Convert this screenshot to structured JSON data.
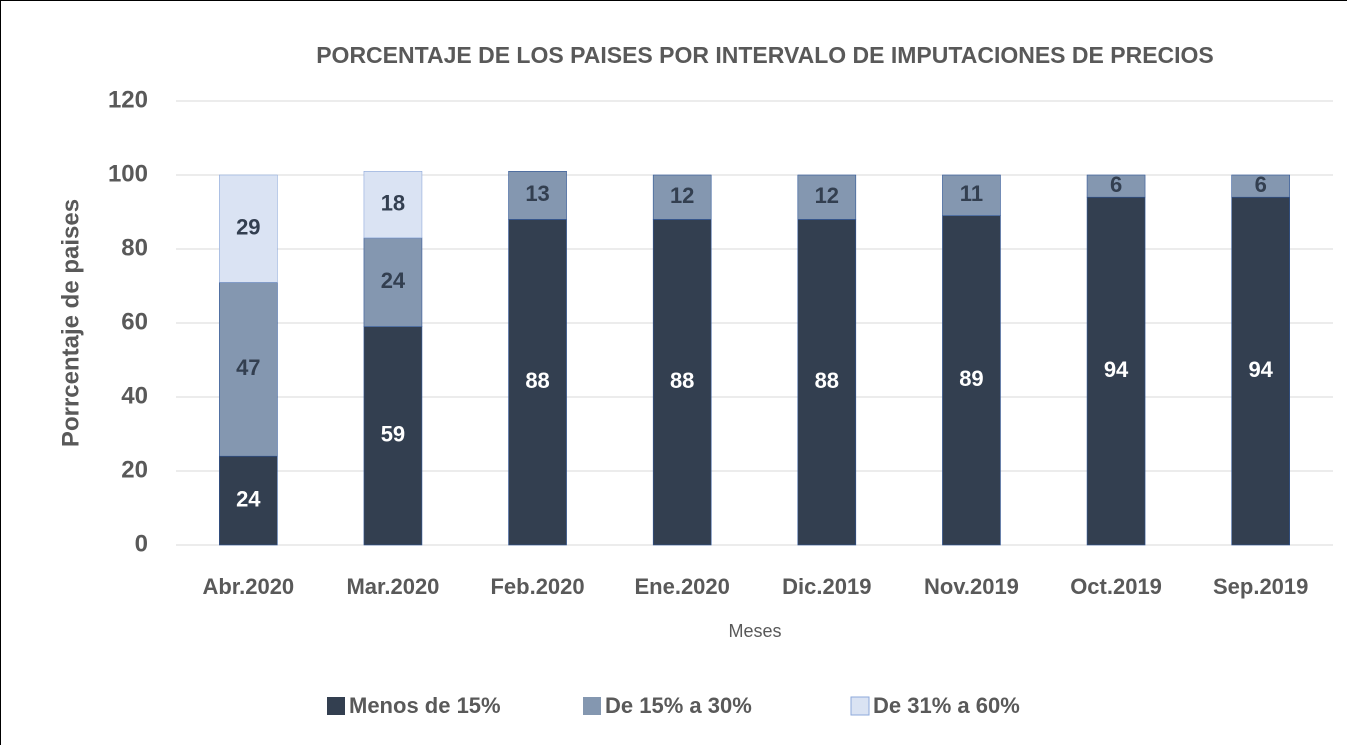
{
  "chart_data": {
    "type": "stacked_bar",
    "title": "PORCENTAJE DE LOS PAISES POR INTERVALO DE IMPUTACIONES DE PRECIOS",
    "x_label": "Meses",
    "y_label": "Porrcentaje de paises",
    "categories": [
      "Abr.2020",
      "Mar.2020",
      "Feb.2020",
      "Ene.2020",
      "Dic.2019",
      "Nov.2019",
      "Oct.2019",
      "Sep.2019"
    ],
    "series": [
      {
        "name": "Menos de 15%",
        "color": "#333f50",
        "values": [
          24,
          59,
          88,
          88,
          88,
          89,
          94,
          94
        ]
      },
      {
        "name": "De 15%  a 30%",
        "color": "#8497b0",
        "values": [
          47,
          24,
          13,
          12,
          12,
          11,
          6,
          6
        ]
      },
      {
        "name": "De 31%  a 60%",
        "color": "#dae3f3",
        "values": [
          29,
          18,
          null,
          null,
          null,
          null,
          null,
          null
        ]
      }
    ],
    "ylim": [
      0,
      120
    ],
    "yticks": [
      0,
      20,
      40,
      60,
      80,
      100,
      120
    ],
    "grid": true,
    "legend": "bottom"
  }
}
